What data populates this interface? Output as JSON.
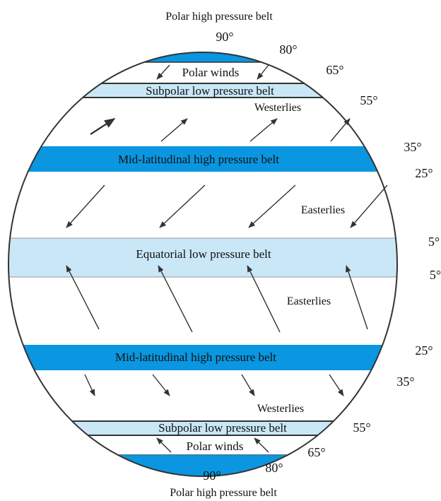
{
  "colors": {
    "high_pressure": "#0a96e0",
    "low_pressure": "#c9e7f7",
    "outline": "#333333",
    "text": "#111111"
  },
  "top_title": "Polar high pressure belt",
  "bottom_title": "Polar high pressure belt",
  "belts": {
    "north_subpolar": "Subpolar low pressure belt",
    "north_midlat": "Mid-latitudinal high pressure belt",
    "equatorial": "Equatorial low pressure belt",
    "south_midlat": "Mid-latitudinal high pressure belt",
    "south_subpolar": "Subpolar low pressure belt"
  },
  "winds": {
    "north_polar": "Polar winds",
    "north_westerlies": "Westerlies",
    "north_easterlies": "Easterlies",
    "south_easterlies": "Easterlies",
    "south_westerlies": "Westerlies",
    "south_polar": "Polar winds"
  },
  "degrees": {
    "n90": "90°",
    "n80": "80°",
    "n65": "65°",
    "n55": "55°",
    "n35": "35°",
    "n25": "25°",
    "n5": "5°",
    "s5": "5°",
    "s25": "25°",
    "s35": "35°",
    "s55": "55°",
    "s65": "65°",
    "s80": "80°",
    "s90": "90°"
  }
}
